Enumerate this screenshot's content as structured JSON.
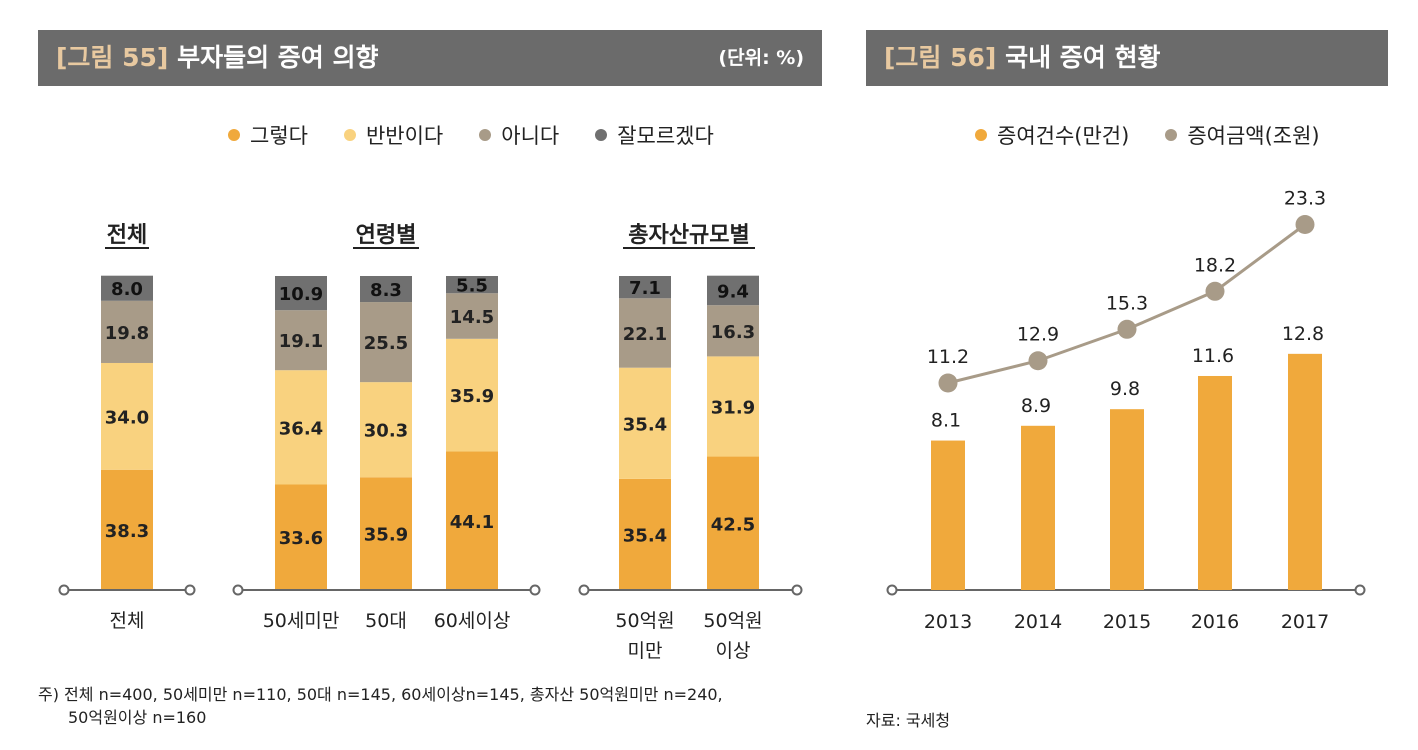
{
  "colors": {
    "yes": "#f0a93c",
    "half": "#f9d27f",
    "no": "#a89b88",
    "unknown": "#707070",
    "line": "#a89b88",
    "header_bg": "#6b6b6b"
  },
  "left": {
    "title_num": "[그림 55]",
    "title_text": "부자들의 증여 의향",
    "unit": "(단위: %)",
    "legend": [
      "그렇다",
      "반반이다",
      "아니다",
      "잘모르겠다"
    ],
    "note_line1": "주) 전체 n=400, 50세미만 n=110, 50대 n=145, 60세이상n=145, 총자산 50억원미만 n=240,",
    "note_line2": "50억원이상 n=160"
  },
  "right": {
    "title_num": "[그림 56]",
    "title_text": "국내 증여 현황",
    "legend": [
      "증여건수(만건)",
      "증여금액(조원)"
    ],
    "source": "자료: 국세청"
  },
  "chart_data": [
    {
      "type": "bar",
      "stacked": true,
      "title": "부자들의 증여 의향",
      "unit": "%",
      "groups": [
        {
          "name": "전체",
          "categories": [
            [
              "전체"
            ]
          ]
        },
        {
          "name": "연령별",
          "categories": [
            [
              "50세미만"
            ],
            [
              "50대"
            ],
            [
              "60세이상"
            ]
          ]
        },
        {
          "name": "총자산규모별",
          "categories": [
            [
              "50억원",
              "미만"
            ],
            [
              "50억원",
              "이상"
            ]
          ]
        }
      ],
      "series": [
        {
          "name": "그렇다",
          "values": [
            38.3,
            33.6,
            35.9,
            44.1,
            35.4,
            42.5
          ]
        },
        {
          "name": "반반이다",
          "values": [
            34.0,
            36.4,
            30.3,
            35.9,
            35.4,
            31.9
          ]
        },
        {
          "name": "아니다",
          "values": [
            19.8,
            19.1,
            25.5,
            14.5,
            22.1,
            16.3
          ]
        },
        {
          "name": "잘모르겠다",
          "values": [
            8.0,
            10.9,
            8.3,
            5.5,
            7.1,
            9.4
          ]
        }
      ],
      "ylim": [
        0,
        100
      ]
    },
    {
      "type": "bar+line",
      "title": "국내 증여 현황",
      "categories": [
        "2013",
        "2014",
        "2015",
        "2016",
        "2017"
      ],
      "series": [
        {
          "name": "증여건수(만건)",
          "type": "bar",
          "values": [
            8.1,
            8.9,
            9.8,
            11.6,
            12.8
          ]
        },
        {
          "name": "증여금액(조원)",
          "type": "line",
          "values": [
            11.2,
            12.9,
            15.3,
            18.2,
            23.3
          ]
        }
      ]
    }
  ]
}
